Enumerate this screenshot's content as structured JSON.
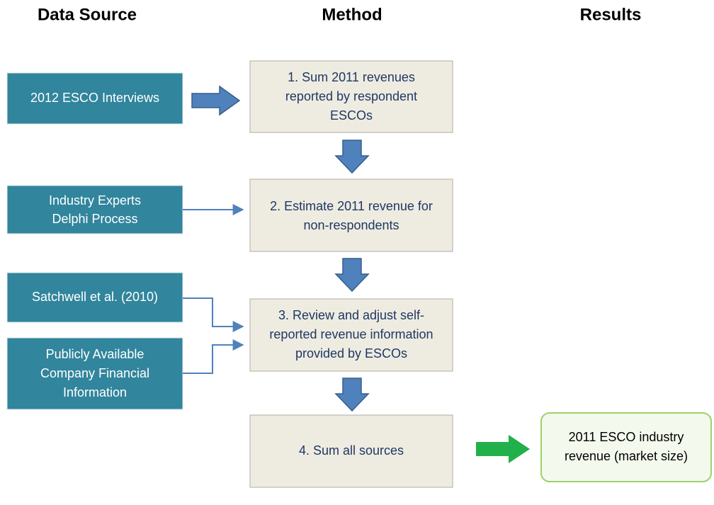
{
  "headers": [
    "Data Source",
    "Method",
    "Results"
  ],
  "sources": [
    {
      "lines": [
        "2012 ESCO Interviews"
      ]
    },
    {
      "lines": [
        "Industry Experts",
        "Delphi Process"
      ]
    },
    {
      "lines": [
        "Satchwell et al. (2010)"
      ]
    },
    {
      "lines": [
        "Publicly Available",
        "Company Financial",
        "Information"
      ]
    }
  ],
  "steps": [
    {
      "lines": [
        "1. Sum 2011 revenues",
        "reported by respondent",
        "ESCOs"
      ]
    },
    {
      "lines": [
        "2. Estimate 2011 revenue for",
        "non-respondents"
      ]
    },
    {
      "lines": [
        "3. Review and adjust self-",
        "reported revenue information",
        "provided by ESCOs"
      ]
    },
    {
      "lines": [
        "4. Sum all sources"
      ]
    }
  ],
  "result": {
    "lines": [
      "2011 ESCO industry",
      "revenue (market size)"
    ]
  }
}
